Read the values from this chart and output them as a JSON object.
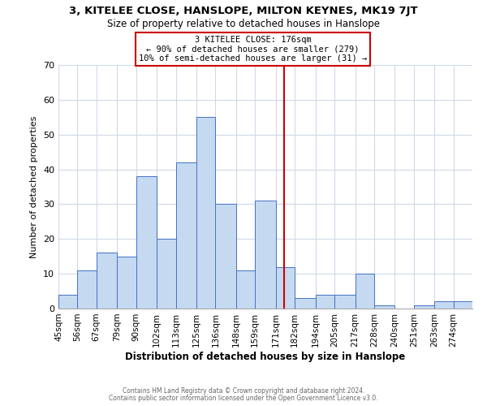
{
  "title": "3, KITELEE CLOSE, HANSLOPE, MILTON KEYNES, MK19 7JT",
  "subtitle": "Size of property relative to detached houses in Hanslope",
  "xlabel": "Distribution of detached houses by size in Hanslope",
  "ylabel": "Number of detached properties",
  "footnote1": "Contains HM Land Registry data © Crown copyright and database right 2024.",
  "footnote2": "Contains public sector information licensed under the Open Government Licence v3.0.",
  "bin_labels": [
    "45sqm",
    "56sqm",
    "67sqm",
    "79sqm",
    "90sqm",
    "102sqm",
    "113sqm",
    "125sqm",
    "136sqm",
    "148sqm",
    "159sqm",
    "171sqm",
    "182sqm",
    "194sqm",
    "205sqm",
    "217sqm",
    "228sqm",
    "240sqm",
    "251sqm",
    "263sqm",
    "274sqm"
  ],
  "bin_edges": [
    45,
    56,
    67,
    79,
    90,
    102,
    113,
    125,
    136,
    148,
    159,
    171,
    182,
    194,
    205,
    217,
    228,
    240,
    251,
    263,
    274
  ],
  "counts": [
    4,
    11,
    16,
    15,
    38,
    20,
    42,
    55,
    30,
    11,
    31,
    12,
    3,
    4,
    4,
    10,
    1,
    0,
    1,
    2,
    2
  ],
  "bar_color": "#c5d9f1",
  "bar_edge_color": "#4472c4",
  "property_value": 176,
  "vline_color": "#cc0000",
  "annotation_text": "3 KITELEE CLOSE: 176sqm\n← 90% of detached houses are smaller (279)\n10% of semi-detached houses are larger (31) →",
  "annotation_box_edge": "#cc0000",
  "ylim": [
    0,
    70
  ],
  "yticks": [
    0,
    10,
    20,
    30,
    40,
    50,
    60,
    70
  ],
  "background_color": "#ffffff",
  "grid_color": "#d0d8e8"
}
